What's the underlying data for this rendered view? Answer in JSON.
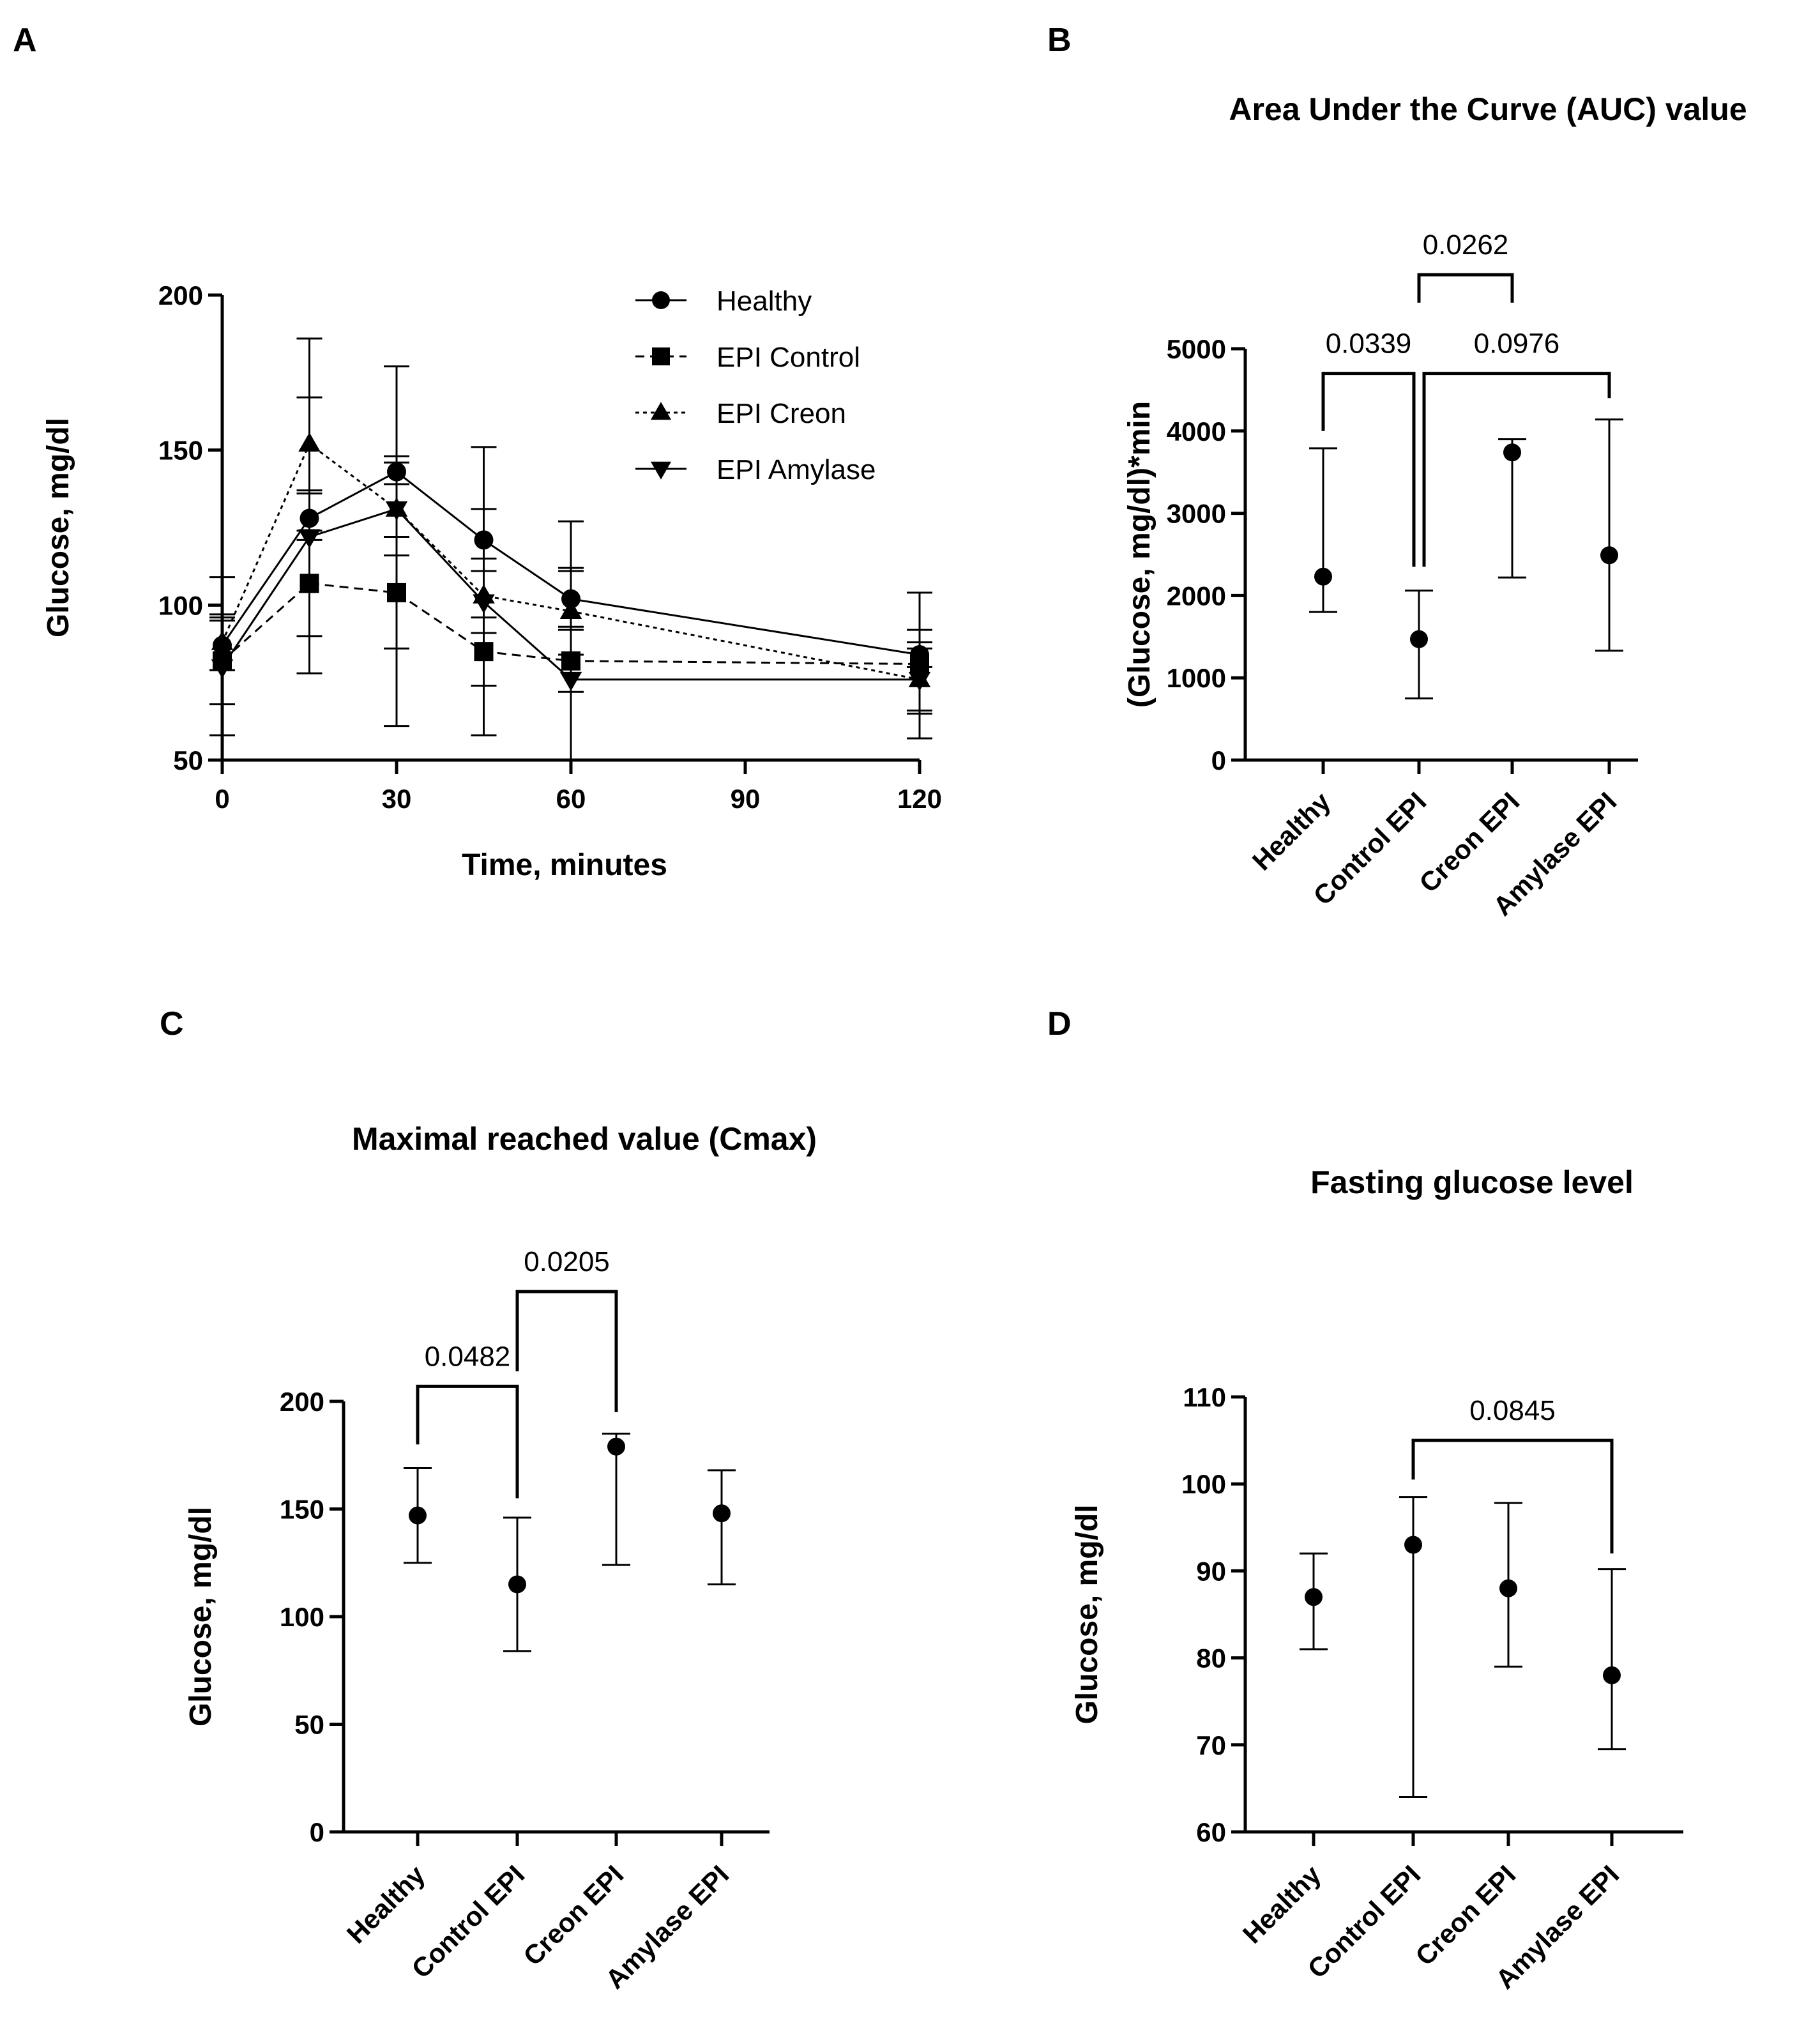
{
  "panels": {
    "a": "A",
    "b": "B",
    "c": "C",
    "d": "D"
  },
  "chart_data": [
    {
      "id": "A",
      "type": "line",
      "title": "",
      "xlabel": "Time, minutes",
      "ylabel": "Glucose, mg/dl",
      "xlim": [
        0,
        120
      ],
      "ylim": [
        50,
        200
      ],
      "xticks": [
        0,
        30,
        60,
        90,
        120
      ],
      "yticks": [
        50,
        100,
        150,
        200
      ],
      "legend_position": "top-right",
      "series": [
        {
          "name": "Healthy",
          "marker": "circle",
          "dash": "solid",
          "x": [
            0,
            15,
            30,
            45,
            60,
            120
          ],
          "y": [
            87,
            128,
            143,
            121,
            102,
            84
          ],
          "err_low": [
            79,
            121,
            139,
            111,
            93,
            80
          ],
          "err_high": [
            95,
            136,
            148,
            131,
            111,
            88
          ]
        },
        {
          "name": "EPI Control",
          "marker": "square",
          "dash": "dashed",
          "x": [
            0,
            15,
            30,
            45,
            60,
            120
          ],
          "y": [
            82,
            107,
            104,
            85,
            82,
            81
          ],
          "err_low": [
            68,
            90,
            86,
            74,
            72,
            65
          ],
          "err_high": [
            96,
            124,
            122,
            96,
            92,
            92
          ]
        },
        {
          "name": "EPI Creon",
          "marker": "triangle-up",
          "dash": "dotted",
          "x": [
            0,
            15,
            30,
            45,
            60,
            120
          ],
          "y": [
            88,
            152,
            131,
            103,
            98,
            76
          ],
          "err_low": [
            79,
            137,
            116,
            91,
            84,
            66
          ],
          "err_high": [
            97,
            167,
            146,
            115,
            112,
            86
          ]
        },
        {
          "name": "EPI Amylase",
          "marker": "triangle-down",
          "dash": "solid",
          "x": [
            0,
            15,
            30,
            45,
            60,
            120
          ],
          "y": [
            80,
            122,
            131,
            101,
            76,
            76
          ],
          "err_low": [
            58,
            78,
            61,
            58,
            50,
            57
          ],
          "err_high": [
            109,
            186,
            177,
            151,
            127,
            104
          ]
        }
      ]
    },
    {
      "id": "B",
      "type": "scatter",
      "title": "Area Under the Curve (AUC) value",
      "xlabel": "",
      "ylabel": "(Glucose, mg/dl)*min",
      "categories": [
        "Healthy",
        "Control EPI",
        "Creon EPI",
        "Amylase EPI"
      ],
      "values": [
        2230,
        1470,
        3740,
        2490
      ],
      "err_low": [
        1800,
        750,
        2220,
        1330
      ],
      "err_high": [
        3790,
        2060,
        3900,
        4140
      ],
      "ylim": [
        0,
        5000
      ],
      "yticks": [
        0,
        1000,
        2000,
        3000,
        4000,
        5000
      ],
      "comparisons": [
        {
          "from": 0,
          "to": 1,
          "p": "0.0339",
          "level": 4700,
          "drop_to": 2350,
          "left_drop": 4000
        },
        {
          "from": 1,
          "to": 3,
          "p": "0.0976",
          "level": 4700,
          "drop_to": 2350,
          "right_drop": 4400
        },
        {
          "from": 1,
          "to": 2,
          "p": "0.0262",
          "level": 5900,
          "drop_to": 5560,
          "right_drop": 5560
        }
      ]
    },
    {
      "id": "C",
      "type": "scatter",
      "title": "Maximal reached value (Cmax)",
      "xlabel": "",
      "ylabel": "Glucose, mg/dl",
      "categories": [
        "Healthy",
        "Control EPI",
        "Creon EPI",
        "Amylase EPI"
      ],
      "values": [
        147,
        115,
        179,
        148
      ],
      "err_low": [
        125,
        84,
        124,
        115
      ],
      "err_high": [
        169,
        146,
        185,
        168
      ],
      "ylim": [
        0,
        200
      ],
      "yticks": [
        0,
        50,
        100,
        150,
        200
      ],
      "comparisons": [
        {
          "from": 0,
          "to": 1,
          "p": "0.0482",
          "level": 207,
          "left_drop": 180,
          "right_drop": 155
        },
        {
          "from": 1,
          "to": 2,
          "p": "0.0205",
          "level": 251,
          "left_drop": 214,
          "right_drop": 195
        }
      ]
    },
    {
      "id": "D",
      "type": "scatter",
      "title": "Fasting glucose level",
      "xlabel": "",
      "ylabel": "Glucose, mg/dl",
      "categories": [
        "Healthy",
        "Control EPI",
        "Creon EPI",
        "Amylase EPI"
      ],
      "values": [
        87,
        93,
        88,
        78
      ],
      "err_low": [
        81,
        64,
        79,
        69.5
      ],
      "err_high": [
        92,
        98.5,
        97.8,
        90.2
      ],
      "ylim": [
        60,
        110
      ],
      "yticks": [
        60,
        70,
        80,
        90,
        100,
        110
      ],
      "comparisons": [
        {
          "from": 1,
          "to": 3,
          "p": "0.0845",
          "level": 105,
          "left_drop": 100.5,
          "right_drop": 92
        }
      ]
    }
  ]
}
